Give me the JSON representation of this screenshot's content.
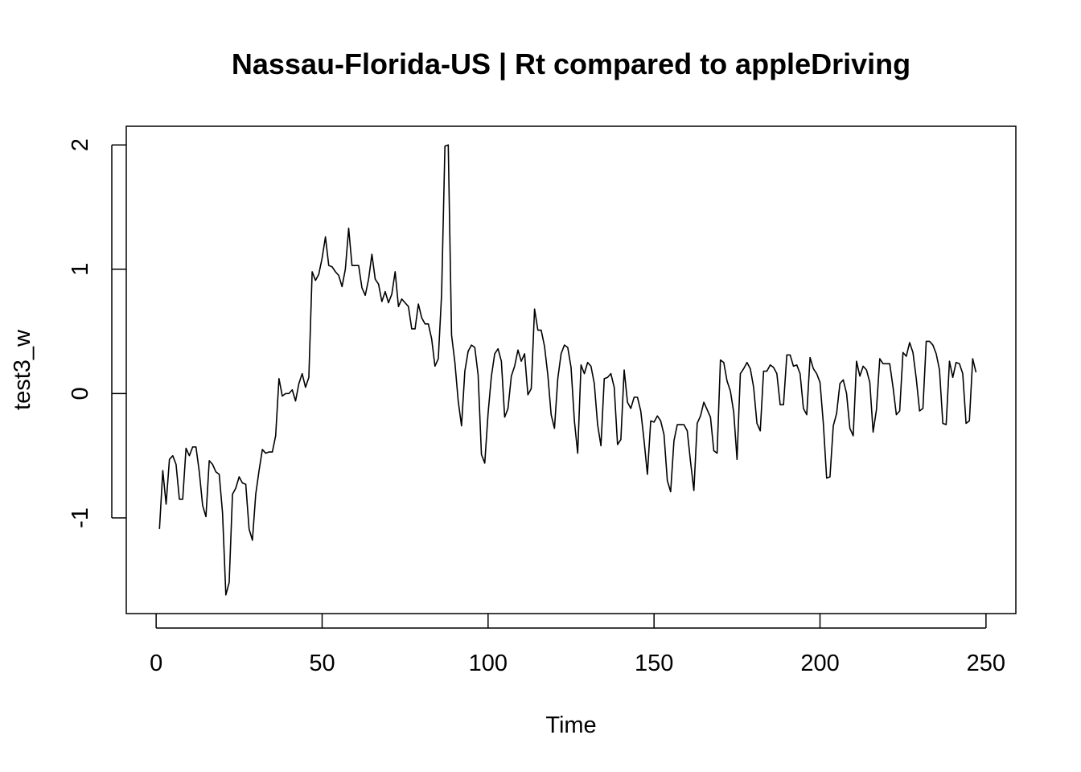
{
  "chart_data": {
    "type": "line",
    "title": "Nassau-Florida-US | Rt compared to appleDriving",
    "xlabel": "Time",
    "ylabel": "test3_w",
    "xlim": [
      -9,
      259
    ],
    "ylim": [
      -1.77,
      2.15
    ],
    "x_ticks": [
      0,
      50,
      100,
      150,
      200,
      250
    ],
    "y_ticks": [
      -1,
      0,
      1,
      2
    ],
    "x_tick_labels": [
      "0",
      "50",
      "100",
      "150",
      "200",
      "250"
    ],
    "y_tick_labels": [
      "-1",
      "0",
      "1",
      "2"
    ],
    "grid": false,
    "line_color": "#000000",
    "series": [
      {
        "x_start": 1,
        "values": [
          -1.09,
          -0.62,
          -0.89,
          -0.53,
          -0.5,
          -0.57,
          -0.85,
          -0.85,
          -0.44,
          -0.5,
          -0.43,
          -0.43,
          -0.63,
          -0.9,
          -0.99,
          -0.54,
          -0.57,
          -0.63,
          -0.65,
          -0.96,
          -1.62,
          -1.52,
          -0.81,
          -0.76,
          -0.67,
          -0.72,
          -0.73,
          -1.09,
          -1.18,
          -0.81,
          -0.62,
          -0.45,
          -0.48,
          -0.47,
          -0.47,
          -0.34,
          0.12,
          -0.02,
          0.0,
          0.0,
          0.03,
          -0.06,
          0.08,
          0.16,
          0.05,
          0.13,
          0.98,
          0.91,
          0.96,
          1.09,
          1.26,
          1.03,
          1.02,
          0.98,
          0.95,
          0.86,
          1.0,
          1.33,
          1.03,
          1.03,
          1.03,
          0.85,
          0.79,
          0.92,
          1.12,
          0.92,
          0.88,
          0.74,
          0.82,
          0.73,
          0.8,
          0.98,
          0.7,
          0.76,
          0.73,
          0.7,
          0.52,
          0.52,
          0.72,
          0.61,
          0.56,
          0.56,
          0.44,
          0.22,
          0.28,
          0.8,
          1.99,
          2.0,
          0.47,
          0.25,
          -0.06,
          -0.26,
          0.18,
          0.34,
          0.39,
          0.37,
          0.15,
          -0.49,
          -0.56,
          -0.16,
          0.14,
          0.32,
          0.36,
          0.26,
          -0.19,
          -0.12,
          0.14,
          0.22,
          0.35,
          0.26,
          0.32,
          -0.01,
          0.04,
          0.68,
          0.51,
          0.51,
          0.38,
          0.15,
          -0.17,
          -0.28,
          0.12,
          0.32,
          0.39,
          0.37,
          0.21,
          -0.22,
          -0.48,
          0.23,
          0.16,
          0.25,
          0.22,
          0.08,
          -0.25,
          -0.42,
          0.12,
          0.13,
          0.16,
          0.05,
          -0.41,
          -0.37,
          0.19,
          -0.07,
          -0.12,
          -0.03,
          -0.03,
          -0.14,
          -0.38,
          -0.65,
          -0.22,
          -0.23,
          -0.18,
          -0.22,
          -0.33,
          -0.7,
          -0.79,
          -0.38,
          -0.25,
          -0.25,
          -0.25,
          -0.3,
          -0.55,
          -0.78,
          -0.24,
          -0.18,
          -0.07,
          -0.13,
          -0.19,
          -0.46,
          -0.48,
          0.27,
          0.25,
          0.1,
          0.02,
          -0.15,
          -0.53,
          0.16,
          0.2,
          0.25,
          0.2,
          0.05,
          -0.24,
          -0.3,
          0.18,
          0.18,
          0.23,
          0.21,
          0.16,
          -0.09,
          -0.09,
          0.31,
          0.31,
          0.22,
          0.23,
          0.16,
          -0.12,
          -0.17,
          0.29,
          0.2,
          0.16,
          0.09,
          -0.24,
          -0.68,
          -0.67,
          -0.26,
          -0.16,
          0.08,
          0.11,
          0.0,
          -0.28,
          -0.34,
          0.26,
          0.14,
          0.22,
          0.19,
          0.09,
          -0.31,
          -0.13,
          0.28,
          0.24,
          0.24,
          0.24,
          0.05,
          -0.17,
          -0.14,
          0.33,
          0.3,
          0.41,
          0.33,
          0.12,
          -0.14,
          -0.12,
          0.42,
          0.42,
          0.39,
          0.32,
          0.19,
          -0.24,
          -0.25,
          0.26,
          0.13,
          0.25,
          0.24,
          0.16,
          -0.24,
          -0.22,
          0.28,
          0.17
        ]
      }
    ]
  }
}
